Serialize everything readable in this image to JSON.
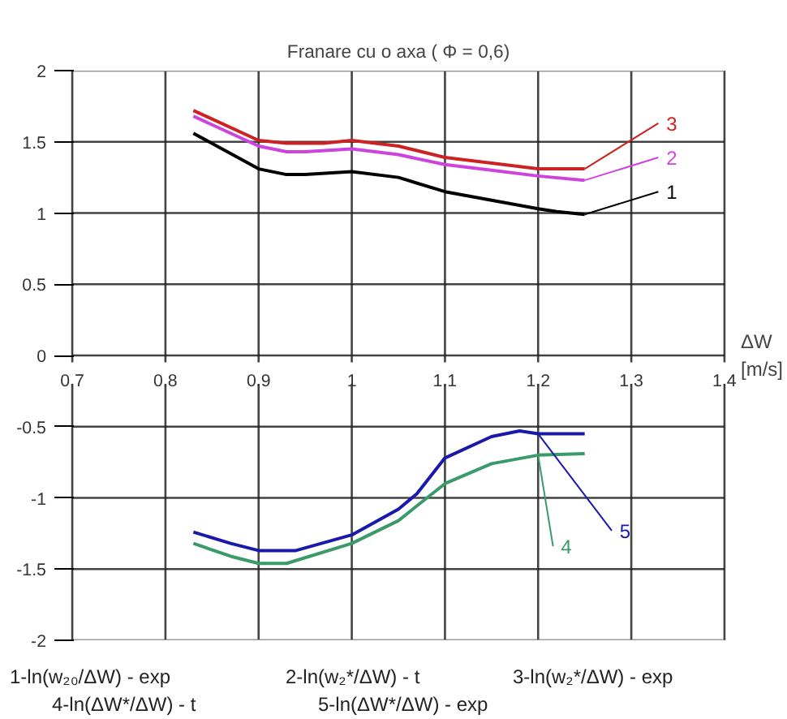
{
  "chart_data": {
    "type": "line",
    "title": "Franare cu o axa ( Φ = 0,6)",
    "xlabel": "ΔW [m/s]",
    "xlim": [
      0.7,
      1.4
    ],
    "xticks": [
      0.7,
      0.8,
      0.9,
      1,
      1.1,
      1.2,
      1.3,
      1.4
    ],
    "ylim": [
      -2,
      2
    ],
    "yticks": [
      -2,
      -1.5,
      -1,
      -0.5,
      0,
      0.5,
      1,
      1.5,
      2
    ],
    "grid": true,
    "legend": "right",
    "marker": "none",
    "line_style": "solid",
    "series": [
      {
        "name": "1",
        "color": "#000000",
        "x": [
          0.83,
          0.9,
          0.93,
          0.95,
          1.0,
          1.05,
          1.1,
          1.15,
          1.2,
          1.22,
          1.25
        ],
        "values": [
          1.56,
          1.31,
          1.27,
          1.27,
          1.29,
          1.25,
          1.15,
          1.09,
          1.03,
          1.01,
          0.99
        ]
      },
      {
        "name": "2",
        "color": "#cc44dd",
        "x": [
          0.83,
          0.9,
          0.93,
          0.95,
          1.0,
          1.05,
          1.1,
          1.15,
          1.2,
          1.25
        ],
        "values": [
          1.68,
          1.47,
          1.43,
          1.43,
          1.45,
          1.41,
          1.34,
          1.3,
          1.26,
          1.23
        ]
      },
      {
        "name": "3",
        "color": "#cc2222",
        "x": [
          0.83,
          0.9,
          0.93,
          0.97,
          1.0,
          1.05,
          1.1,
          1.15,
          1.2,
          1.25
        ],
        "values": [
          1.72,
          1.51,
          1.49,
          1.49,
          1.51,
          1.47,
          1.39,
          1.35,
          1.31,
          1.31
        ]
      },
      {
        "name": "4",
        "color": "#3a9a6a",
        "x": [
          0.83,
          0.87,
          0.9,
          0.93,
          1.0,
          1.05,
          1.1,
          1.15,
          1.2,
          1.25
        ],
        "values": [
          -1.32,
          -1.41,
          -1.46,
          -1.46,
          -1.32,
          -1.16,
          -0.9,
          -0.76,
          -0.7,
          -0.69
        ]
      },
      {
        "name": "5",
        "color": "#1a1aaa",
        "x": [
          0.83,
          0.87,
          0.9,
          0.94,
          1.0,
          1.05,
          1.07,
          1.1,
          1.15,
          1.18,
          1.2,
          1.25
        ],
        "values": [
          -1.24,
          -1.32,
          -1.37,
          -1.37,
          -1.26,
          -1.08,
          -0.97,
          -0.72,
          -0.57,
          -0.53,
          -0.55,
          -0.55
        ]
      }
    ],
    "annotations": [
      "1-ln(w₂₀/ΔW) - exp",
      "2-ln(w₂*/ΔW) - t",
      "3-ln(w₂*/ΔW) - exp",
      "4-ln(ΔW*/ΔW) - t",
      "5-ln(ΔW*/ΔW) - exp"
    ]
  }
}
